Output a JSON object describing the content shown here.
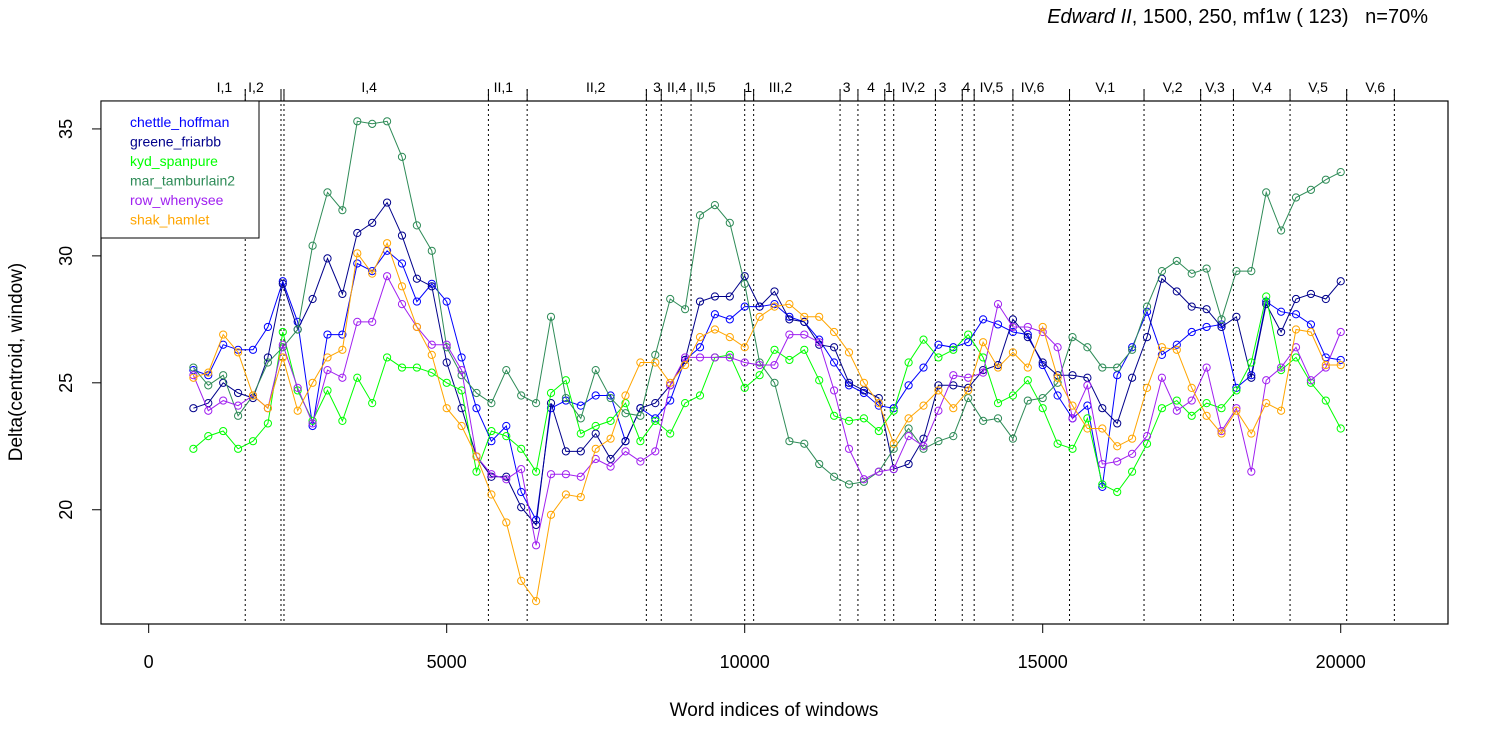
{
  "title": {
    "italic": "Edward II",
    "rest": ", 1500, 250, mf1w ( 123)",
    "n": "n=70%"
  },
  "chart_data": {
    "type": "line",
    "title": "Edward II, 1500, 250, mf1w ( 123)   n=70%",
    "xlabel": "Word indices of windows",
    "ylabel": "Delta(centroid, window)",
    "xlim": [
      -800,
      21800
    ],
    "ylim": [
      15.5,
      36.1
    ],
    "xticks": [
      0,
      5000,
      10000,
      15000,
      20000
    ],
    "yticks": [
      20,
      25,
      30,
      35
    ],
    "legend_position": "top-left",
    "grid": false,
    "x": [
      750,
      1000,
      1250,
      1500,
      1750,
      2000,
      2250,
      2500,
      2750,
      3000,
      3250,
      3500,
      3750,
      4000,
      4250,
      4500,
      4750,
      5000,
      5250,
      5500,
      5750,
      6000,
      6250,
      6500,
      6750,
      7000,
      7250,
      7500,
      7750,
      8000,
      8250,
      8500,
      8750,
      9000,
      9250,
      9500,
      9750,
      10000,
      10250,
      10500,
      10750,
      11000,
      11250,
      11500,
      11750,
      12000,
      12250,
      12500,
      12750,
      13000,
      13250,
      13500,
      13750,
      14000,
      14250,
      14500,
      14750,
      15000,
      15250,
      15500,
      15750,
      16000,
      16250,
      16500,
      16750,
      17000,
      17250,
      17500,
      17750,
      18000,
      18250,
      18500,
      18750,
      19000,
      19250,
      19500,
      19750,
      20000
    ],
    "series": [
      {
        "name": "chettle_hoffman",
        "color": "#0000ff",
        "values": [
          25.5,
          25.3,
          26.5,
          26.3,
          26.3,
          27.2,
          29.0,
          27.4,
          23.3,
          26.9,
          26.9,
          29.7,
          29.4,
          30.2,
          29.7,
          28.2,
          28.9,
          28.2,
          26.0,
          24.0,
          22.7,
          23.3,
          20.7,
          19.6,
          24.0,
          24.3,
          24.1,
          24.5,
          24.5,
          22.7,
          24.0,
          23.6,
          24.3,
          25.9,
          26.4,
          27.7,
          27.5,
          28.0,
          28.0,
          28.1,
          27.6,
          27.4,
          26.7,
          25.8,
          24.9,
          24.6,
          24.1,
          24.0,
          24.9,
          25.6,
          26.5,
          26.4,
          26.6,
          27.5,
          27.3,
          27.0,
          26.9,
          25.7,
          24.5,
          23.6,
          24.1,
          20.9,
          25.3,
          26.4,
          27.8,
          26.1,
          26.5,
          27.0,
          27.2,
          27.3,
          24.8,
          25.3,
          28.2,
          27.8,
          27.7,
          27.3,
          26.0,
          25.9
        ]
      },
      {
        "name": "greene_friarbb",
        "color": "#00008b",
        "values": [
          24.0,
          24.2,
          25.0,
          24.6,
          24.4,
          26.0,
          28.9,
          27.1,
          28.3,
          29.9,
          28.5,
          30.9,
          31.3,
          32.1,
          30.8,
          29.1,
          28.8,
          25.8,
          24.0,
          22.1,
          21.3,
          21.3,
          20.1,
          19.4,
          24.2,
          22.3,
          22.3,
          23.0,
          22.0,
          22.7,
          24.0,
          24.2,
          24.9,
          25.9,
          28.2,
          28.4,
          28.4,
          29.2,
          28.0,
          28.6,
          27.5,
          27.4,
          26.5,
          26.4,
          25.0,
          24.7,
          24.4,
          21.6,
          21.8,
          22.8,
          24.9,
          24.9,
          24.8,
          25.5,
          25.7,
          27.5,
          26.8,
          25.8,
          25.3,
          25.3,
          25.2,
          24.0,
          23.4,
          25.2,
          26.8,
          29.1,
          28.6,
          28.0,
          27.9,
          27.2,
          27.6,
          25.2,
          28.1,
          27.0,
          28.3,
          28.5,
          28.3,
          29.0
        ]
      },
      {
        "name": "kyd_spanpure",
        "color": "#00ff00",
        "values": [
          22.4,
          22.9,
          23.1,
          22.4,
          22.7,
          23.4,
          27.0,
          24.7,
          23.5,
          24.7,
          23.5,
          25.2,
          24.2,
          26.0,
          25.6,
          25.6,
          25.4,
          25.0,
          24.7,
          21.5,
          23.1,
          22.9,
          22.4,
          21.5,
          24.6,
          25.1,
          23.0,
          23.3,
          23.5,
          24.2,
          22.7,
          23.5,
          23.0,
          24.2,
          24.5,
          26.0,
          26.1,
          24.8,
          25.3,
          26.3,
          25.9,
          26.3,
          25.1,
          23.7,
          23.5,
          23.6,
          23.1,
          23.9,
          25.8,
          26.7,
          26.0,
          26.3,
          26.9,
          26.0,
          24.2,
          24.5,
          25.1,
          24.0,
          22.6,
          22.4,
          23.6,
          21.0,
          20.7,
          21.5,
          22.6,
          24.0,
          24.3,
          23.7,
          24.2,
          24.0,
          24.7,
          25.8,
          28.4,
          25.5,
          26.0,
          25.0,
          24.3,
          23.2
        ]
      },
      {
        "name": "mar_tamburlain2",
        "color": "#2e8b57",
        "values": [
          25.6,
          24.9,
          25.3,
          23.7,
          24.5,
          25.8,
          26.4,
          27.1,
          30.4,
          32.5,
          31.8,
          35.3,
          35.2,
          35.3,
          33.9,
          31.2,
          30.2,
          26.4,
          25.3,
          24.6,
          24.2,
          25.5,
          24.5,
          24.2,
          27.6,
          24.4,
          23.6,
          25.5,
          24.4,
          23.8,
          23.7,
          26.1,
          28.3,
          27.9,
          31.6,
          32.0,
          31.3,
          28.9,
          25.8,
          25.0,
          22.7,
          22.6,
          21.8,
          21.3,
          21.0,
          21.1,
          21.5,
          22.4,
          23.2,
          22.4,
          22.7,
          22.9,
          24.4,
          23.5,
          23.6,
          22.8,
          24.3,
          24.4,
          25.0,
          26.8,
          26.4,
          25.6,
          25.6,
          26.3,
          28.0,
          29.4,
          29.8,
          29.3,
          29.5,
          27.5,
          29.4,
          29.4,
          32.5,
          31.0,
          32.3,
          32.6,
          33.0,
          33.3
        ]
      },
      {
        "name": "row_whenysee",
        "color": "#a020f0",
        "values": [
          25.3,
          23.9,
          24.3,
          24.1,
          24.5,
          24.0,
          26.5,
          24.8,
          23.4,
          25.5,
          25.2,
          27.4,
          27.4,
          29.2,
          28.1,
          27.2,
          26.5,
          26.5,
          25.5,
          22.1,
          21.4,
          21.2,
          21.6,
          18.6,
          21.4,
          21.4,
          21.3,
          22.0,
          21.7,
          22.3,
          21.9,
          22.3,
          24.9,
          26.0,
          26.0,
          26.0,
          26.0,
          25.8,
          25.7,
          25.7,
          26.9,
          26.9,
          26.6,
          24.7,
          22.4,
          21.2,
          21.5,
          21.6,
          22.9,
          22.5,
          23.9,
          25.3,
          25.2,
          25.4,
          28.1,
          27.2,
          27.2,
          27.0,
          26.4,
          23.6,
          24.9,
          21.8,
          21.9,
          22.2,
          22.9,
          25.2,
          23.9,
          24.3,
          25.6,
          23.1,
          24.0,
          21.5,
          25.1,
          25.6,
          26.4,
          25.1,
          25.6,
          27.0
        ]
      },
      {
        "name": "shak_hamlet",
        "color": "#ffa500",
        "values": [
          25.2,
          25.4,
          26.9,
          26.2,
          24.5,
          24.0,
          26.0,
          23.9,
          25.0,
          26.0,
          26.3,
          30.1,
          29.3,
          30.5,
          28.8,
          27.2,
          26.1,
          24.0,
          23.3,
          22.1,
          20.6,
          19.5,
          17.2,
          16.4,
          19.8,
          20.6,
          20.5,
          22.4,
          22.8,
          24.5,
          25.8,
          25.8,
          25.0,
          25.7,
          26.8,
          27.1,
          26.8,
          26.4,
          27.6,
          28.0,
          28.1,
          27.6,
          27.6,
          27.0,
          26.2,
          25.0,
          24.2,
          22.6,
          23.6,
          24.1,
          24.7,
          24.0,
          24.7,
          26.6,
          25.6,
          26.2,
          25.6,
          27.2,
          25.2,
          24.1,
          23.2,
          23.2,
          22.5,
          22.8,
          24.8,
          26.4,
          26.3,
          24.8,
          23.7,
          23.0,
          23.9,
          23.0,
          24.2,
          23.9,
          27.1,
          27.0,
          25.7,
          25.7
        ]
      }
    ],
    "scene_boundaries": [
      1620,
      2220,
      2270,
      5700,
      6350,
      8350,
      8600,
      9100,
      10000,
      10150,
      11600,
      11900,
      12350,
      12500,
      13200,
      13650,
      13850,
      14500,
      15450,
      16700,
      17650,
      18200,
      19150,
      20100,
      20900
    ],
    "scene_labels": [
      {
        "label": "I,1",
        "x": 1270
      },
      {
        "label": "I,2",
        "x": 1800
      },
      {
        "label": "I,4",
        "x": 3700
      },
      {
        "label": "II,1",
        "x": 5950
      },
      {
        "label": "II,2",
        "x": 7500
      },
      {
        "label": "3",
        "x": 8530
      },
      {
        "label": "II,4",
        "x": 8860
      },
      {
        "label": "II,5",
        "x": 9350
      },
      {
        "label": "1",
        "x": 10060
      },
      {
        "label": "III,2",
        "x": 10600
      },
      {
        "label": "3",
        "x": 11710
      },
      {
        "label": "4",
        "x": 12120
      },
      {
        "label": "1",
        "x": 12420
      },
      {
        "label": "IV,2",
        "x": 12830
      },
      {
        "label": "3",
        "x": 13320
      },
      {
        "label": "4",
        "x": 13720
      },
      {
        "label": "IV,5",
        "x": 14140
      },
      {
        "label": "IV,6",
        "x": 14830
      },
      {
        "label": "V,1",
        "x": 16050
      },
      {
        "label": "V,2",
        "x": 17180
      },
      {
        "label": "V,3",
        "x": 17890
      },
      {
        "label": "V,4",
        "x": 18680
      },
      {
        "label": "V,5",
        "x": 19620
      },
      {
        "label": "V,6",
        "x": 20580
      }
    ]
  }
}
